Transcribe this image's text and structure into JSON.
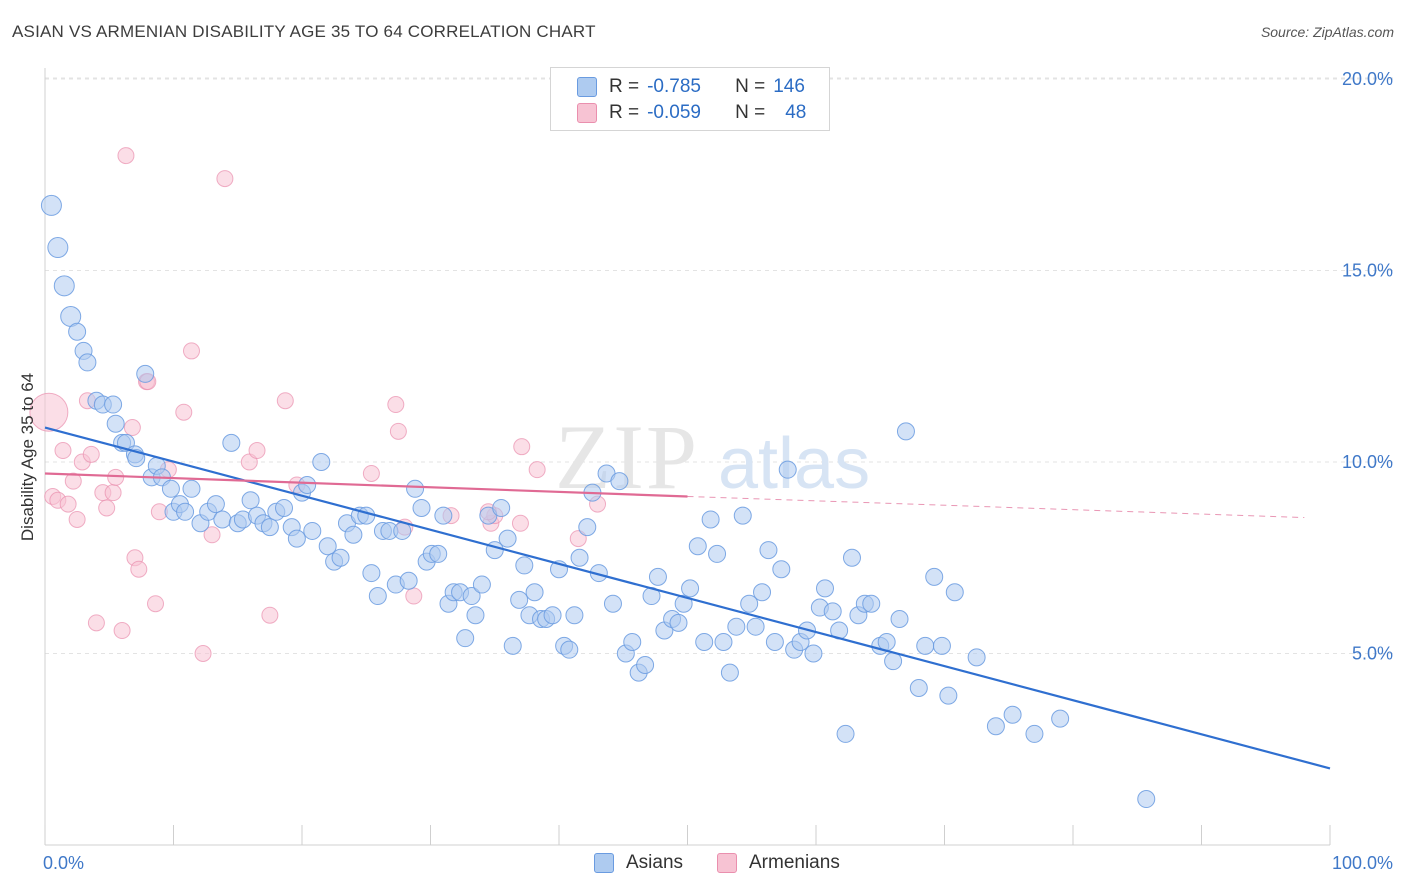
{
  "title": "ASIAN VS ARMENIAN DISABILITY AGE 35 TO 64 CORRELATION CHART",
  "source": "Source: ZipAtlas.com",
  "watermark": {
    "zip": "ZIP",
    "atlas": "atlas"
  },
  "legend": {
    "rows": [
      {
        "r_label": "R =",
        "r_value": "-0.785",
        "n_label": "N =",
        "n_value": "146",
        "color": "#aecbf0",
        "stroke": "#6a9be0"
      },
      {
        "r_label": "R =",
        "r_value": "-0.059",
        "n_label": "N =",
        "n_value": "48",
        "color": "#f7c3d3",
        "stroke": "#ea8fae"
      }
    ]
  },
  "bottom_legend": [
    {
      "label": "Asians",
      "color": "#aecbf0",
      "stroke": "#6a9be0"
    },
    {
      "label": "Armenians",
      "color": "#f7c3d3",
      "stroke": "#ea8fae"
    }
  ],
  "chart_data": {
    "type": "scatter",
    "title": "ASIAN VS ARMENIAN DISABILITY AGE 35 TO 64 CORRELATION CHART",
    "xlabel": "",
    "ylabel": "Disability Age 35 to 64",
    "xlim": [
      0,
      100
    ],
    "ylim": [
      0,
      20.5
    ],
    "x_tick_labels": [
      "0.0%",
      "100.0%"
    ],
    "y_ticks": [
      5,
      10,
      15,
      20
    ],
    "y_tick_labels": [
      "5.0%",
      "10.0%",
      "15.0%",
      "20.0%"
    ],
    "grid": "horizontal dashed",
    "legend_position": "top-center",
    "series": [
      {
        "name": "Asians",
        "color": "#6a9be0",
        "fill": "#aecbf0",
        "regression": {
          "x": [
            0,
            100
          ],
          "y": [
            10.9,
            2.0
          ]
        },
        "points": [
          [
            0.5,
            16.7
          ],
          [
            1,
            15.6
          ],
          [
            1.5,
            14.6
          ],
          [
            2,
            13.8
          ],
          [
            2.5,
            13.4
          ],
          [
            3,
            12.9
          ],
          [
            3.3,
            12.6
          ],
          [
            4,
            11.6
          ],
          [
            4.5,
            11.5
          ],
          [
            5.3,
            11.5
          ],
          [
            5.5,
            11.0
          ],
          [
            6,
            10.5
          ],
          [
            6.3,
            10.5
          ],
          [
            7,
            10.2
          ],
          [
            7.1,
            10.1
          ],
          [
            7.8,
            12.3
          ],
          [
            8.3,
            9.6
          ],
          [
            8.7,
            9.9
          ],
          [
            9.1,
            9.6
          ],
          [
            9.8,
            9.3
          ],
          [
            10,
            8.7
          ],
          [
            10.5,
            8.9
          ],
          [
            10.9,
            8.7
          ],
          [
            11.4,
            9.3
          ],
          [
            12.1,
            8.4
          ],
          [
            12.7,
            8.7
          ],
          [
            13.3,
            8.9
          ],
          [
            13.8,
            8.5
          ],
          [
            14.5,
            10.5
          ],
          [
            15,
            8.4
          ],
          [
            15.4,
            8.5
          ],
          [
            16,
            9.0
          ],
          [
            16.5,
            8.6
          ],
          [
            17,
            8.4
          ],
          [
            17.5,
            8.3
          ],
          [
            18,
            8.7
          ],
          [
            18.6,
            8.8
          ],
          [
            19.2,
            8.3
          ],
          [
            19.6,
            8.0
          ],
          [
            20,
            9.2
          ],
          [
            20.4,
            9.4
          ],
          [
            20.8,
            8.2
          ],
          [
            21.5,
            10.0
          ],
          [
            22,
            7.8
          ],
          [
            22.5,
            7.4
          ],
          [
            23,
            7.5
          ],
          [
            23.5,
            8.4
          ],
          [
            24,
            8.1
          ],
          [
            24.5,
            8.6
          ],
          [
            25,
            8.6
          ],
          [
            25.4,
            7.1
          ],
          [
            25.9,
            6.5
          ],
          [
            26.3,
            8.2
          ],
          [
            26.8,
            8.2
          ],
          [
            27.3,
            6.8
          ],
          [
            27.8,
            8.2
          ],
          [
            28.3,
            6.9
          ],
          [
            28.8,
            9.3
          ],
          [
            29.3,
            8.8
          ],
          [
            29.7,
            7.4
          ],
          [
            30.1,
            7.6
          ],
          [
            30.6,
            7.6
          ],
          [
            31,
            8.6
          ],
          [
            31.4,
            6.3
          ],
          [
            31.8,
            6.6
          ],
          [
            32.3,
            6.6
          ],
          [
            32.7,
            5.4
          ],
          [
            33.2,
            6.5
          ],
          [
            33.5,
            6.0
          ],
          [
            34,
            6.8
          ],
          [
            34.5,
            8.6
          ],
          [
            35,
            7.7
          ],
          [
            35.5,
            8.8
          ],
          [
            36,
            8.0
          ],
          [
            36.4,
            5.2
          ],
          [
            36.9,
            6.4
          ],
          [
            37.3,
            7.3
          ],
          [
            37.7,
            6.0
          ],
          [
            38.1,
            6.6
          ],
          [
            38.6,
            5.9
          ],
          [
            39,
            5.9
          ],
          [
            39.5,
            6.0
          ],
          [
            40,
            7.2
          ],
          [
            40.4,
            5.2
          ],
          [
            40.8,
            5.1
          ],
          [
            41.2,
            6.0
          ],
          [
            41.6,
            7.5
          ],
          [
            42.2,
            8.3
          ],
          [
            42.6,
            9.2
          ],
          [
            43.1,
            7.1
          ],
          [
            43.7,
            9.7
          ],
          [
            44.2,
            6.3
          ],
          [
            44.7,
            9.5
          ],
          [
            45.2,
            5.0
          ],
          [
            45.7,
            5.3
          ],
          [
            46.2,
            4.5
          ],
          [
            46.7,
            4.7
          ],
          [
            47.2,
            6.5
          ],
          [
            47.7,
            7.0
          ],
          [
            48.2,
            5.6
          ],
          [
            48.8,
            5.9
          ],
          [
            49.3,
            5.8
          ],
          [
            49.7,
            6.3
          ],
          [
            50.2,
            6.7
          ],
          [
            50.8,
            7.8
          ],
          [
            51.3,
            5.3
          ],
          [
            51.8,
            8.5
          ],
          [
            52.3,
            7.6
          ],
          [
            52.8,
            5.3
          ],
          [
            53.3,
            4.5
          ],
          [
            53.8,
            5.7
          ],
          [
            54.3,
            8.6
          ],
          [
            54.8,
            6.3
          ],
          [
            55.3,
            5.7
          ],
          [
            55.8,
            6.6
          ],
          [
            56.3,
            7.7
          ],
          [
            56.8,
            5.3
          ],
          [
            57.3,
            7.2
          ],
          [
            57.8,
            9.8
          ],
          [
            58.3,
            5.1
          ],
          [
            58.8,
            5.3
          ],
          [
            59.3,
            5.6
          ],
          [
            59.8,
            5.0
          ],
          [
            60.3,
            6.2
          ],
          [
            60.7,
            6.7
          ],
          [
            61.3,
            6.1
          ],
          [
            61.8,
            5.6
          ],
          [
            62.3,
            2.9
          ],
          [
            62.8,
            7.5
          ],
          [
            63.3,
            6.0
          ],
          [
            63.8,
            6.3
          ],
          [
            64.3,
            6.3
          ],
          [
            65,
            5.2
          ],
          [
            65.5,
            5.3
          ],
          [
            66,
            4.8
          ],
          [
            66.5,
            5.9
          ],
          [
            67,
            10.8
          ],
          [
            68,
            4.1
          ],
          [
            68.5,
            5.2
          ],
          [
            69.2,
            7.0
          ],
          [
            69.8,
            5.2
          ],
          [
            70.3,
            3.9
          ],
          [
            70.8,
            6.6
          ],
          [
            72.5,
            4.9
          ],
          [
            74,
            3.1
          ],
          [
            75.3,
            3.4
          ],
          [
            77,
            2.9
          ],
          [
            79,
            3.3
          ],
          [
            85.7,
            1.2
          ]
        ],
        "large_points": [
          [
            0.5,
            16.7
          ],
          [
            1,
            15.6
          ],
          [
            1.5,
            14.6
          ],
          [
            2,
            13.8
          ]
        ]
      },
      {
        "name": "Armenians",
        "color": "#ea8fae",
        "fill": "#f7c3d3",
        "regression": {
          "x": [
            0,
            50
          ],
          "y": [
            9.7,
            9.1
          ]
        },
        "regression_extended": {
          "x": [
            50,
            98
          ],
          "y": [
            9.1,
            8.55
          ]
        },
        "points": [
          [
            0.3,
            11.3
          ],
          [
            0.6,
            9.1
          ],
          [
            1,
            9.0
          ],
          [
            1.4,
            10.3
          ],
          [
            1.8,
            8.9
          ],
          [
            2.2,
            9.5
          ],
          [
            2.5,
            8.5
          ],
          [
            2.9,
            10.0
          ],
          [
            3.3,
            11.6
          ],
          [
            3.6,
            10.2
          ],
          [
            4,
            5.8
          ],
          [
            4.5,
            9.2
          ],
          [
            4.8,
            8.8
          ],
          [
            5.3,
            9.2
          ],
          [
            5.5,
            9.6
          ],
          [
            6,
            5.6
          ],
          [
            6.3,
            18.0
          ],
          [
            6.8,
            10.9
          ],
          [
            7,
            7.5
          ],
          [
            7.3,
            7.2
          ],
          [
            7.9,
            12.1
          ],
          [
            8,
            12.1
          ],
          [
            8.6,
            6.3
          ],
          [
            8.9,
            8.7
          ],
          [
            9.6,
            9.8
          ],
          [
            10.8,
            11.3
          ],
          [
            11.4,
            12.9
          ],
          [
            12.3,
            5.0
          ],
          [
            13,
            8.1
          ],
          [
            14,
            17.4
          ],
          [
            15.9,
            10.0
          ],
          [
            16.5,
            10.3
          ],
          [
            17.5,
            6.0
          ],
          [
            18.7,
            11.6
          ],
          [
            19.6,
            9.4
          ],
          [
            25.4,
            9.7
          ],
          [
            27.3,
            11.5
          ],
          [
            27.5,
            10.8
          ],
          [
            28,
            8.3
          ],
          [
            28.7,
            6.5
          ],
          [
            31.6,
            8.6
          ],
          [
            34.7,
            8.4
          ],
          [
            35,
            8.6
          ],
          [
            34.5,
            8.7
          ],
          [
            37,
            8.4
          ],
          [
            37.1,
            10.4
          ],
          [
            38.3,
            9.8
          ],
          [
            41.5,
            8.0
          ],
          [
            43,
            8.9
          ]
        ]
      }
    ]
  }
}
